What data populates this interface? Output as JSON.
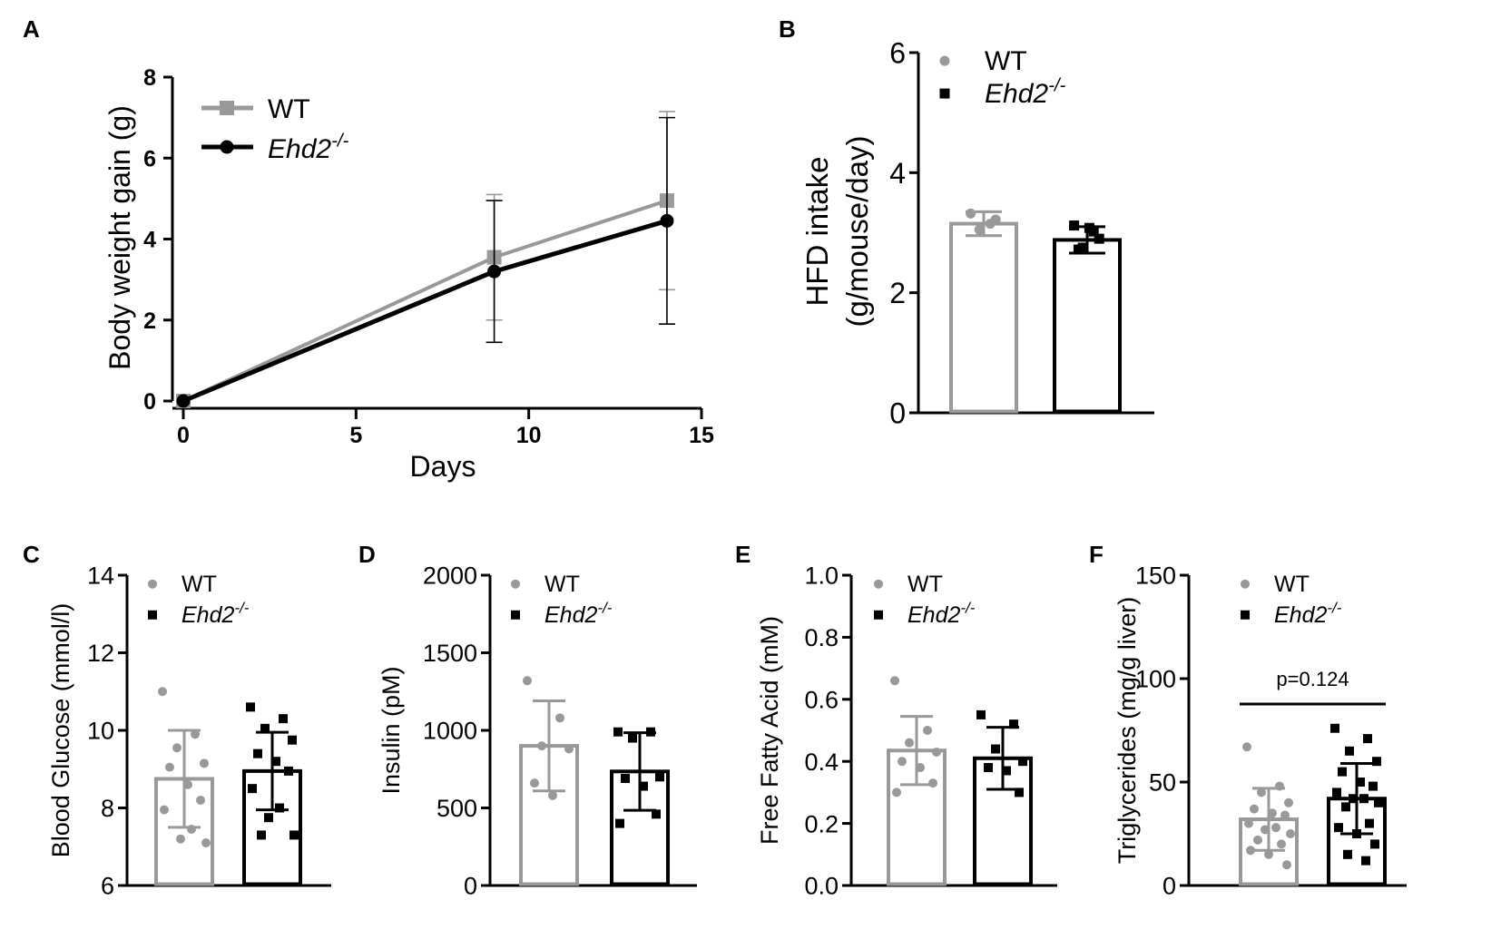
{
  "colors": {
    "wt": "#999999",
    "ko": "#000000"
  },
  "legend": {
    "wt": "WT",
    "ko_base": "Ehd2",
    "ko_sup": "-/-"
  },
  "chart_data": [
    {
      "id": "A",
      "panel_label": "A",
      "type": "line",
      "xlabel": "Days",
      "ylabel": "Body weight gain (g)",
      "xlim": [
        0,
        15
      ],
      "ylim": [
        0,
        8
      ],
      "xticks": [
        "0",
        "5",
        "10",
        "15"
      ],
      "yticks": [
        "0",
        "2",
        "4",
        "6",
        "8"
      ],
      "series": [
        {
          "name": "WT",
          "x": [
            0,
            9,
            14
          ],
          "y": [
            0,
            3.55,
            4.95
          ],
          "err_low": [
            0,
            1.55,
            2.2
          ],
          "err_high": [
            0,
            1.55,
            2.2
          ]
        },
        {
          "name": "Ehd2-/-",
          "x": [
            0,
            9,
            14
          ],
          "y": [
            0,
            3.2,
            4.45
          ],
          "err_low": [
            0,
            1.75,
            2.55
          ],
          "err_high": [
            0,
            1.75,
            2.55
          ]
        }
      ]
    },
    {
      "id": "B",
      "panel_label": "B",
      "type": "bar",
      "ylabel_lines": [
        "HFD intake",
        "(g/mouse/day)"
      ],
      "ylim": [
        0,
        6
      ],
      "yticks": [
        "0",
        "2",
        "4",
        "6"
      ],
      "categories": [
        "WT",
        "Ehd2-/-"
      ],
      "values": [
        3.15,
        2.88
      ],
      "sd": [
        0.2,
        0.22
      ],
      "points": [
        [
          3.32,
          3.15,
          3.05,
          3.22
        ],
        [
          3.12,
          3.02,
          2.75,
          2.9,
          2.72,
          3.08
        ]
      ]
    },
    {
      "id": "C",
      "panel_label": "C",
      "type": "bar",
      "ylabel": "Blood Glucose (mmol/l)",
      "ylim": [
        6,
        14
      ],
      "yticks": [
        "6",
        "8",
        "10",
        "12",
        "14"
      ],
      "categories": [
        "WT",
        "Ehd2-/-"
      ],
      "values": [
        8.75,
        8.95
      ],
      "sd": [
        1.25,
        1.0
      ],
      "points": [
        [
          11.0,
          9.9,
          9.55,
          9.15,
          9.05,
          8.6,
          8.2,
          7.95,
          7.45,
          7.2,
          7.1
        ],
        [
          10.6,
          10.3,
          10.05,
          9.75,
          9.4,
          9.2,
          8.95,
          8.5,
          8.0,
          7.75,
          7.3,
          7.3
        ]
      ]
    },
    {
      "id": "D",
      "panel_label": "D",
      "type": "bar",
      "ylabel": "Insulin (pM)",
      "ylim": [
        0,
        2000
      ],
      "yticks": [
        "0",
        "500",
        "1000",
        "1500",
        "2000"
      ],
      "categories": [
        "WT",
        "Ehd2-/-"
      ],
      "values": [
        900,
        735
      ],
      "sd": [
        290,
        250
      ],
      "points": [
        [
          1320,
          1080,
          900,
          880,
          660,
          580
        ],
        [
          990,
          990,
          950,
          700,
          690,
          640,
          460,
          400
        ]
      ]
    },
    {
      "id": "E",
      "panel_label": "E",
      "type": "bar",
      "ylabel": "Free Fatty Acid (mM)",
      "ylim": [
        0,
        1.0
      ],
      "yticks": [
        "0.0",
        "0.2",
        "0.4",
        "0.6",
        "0.8",
        "1.0"
      ],
      "categories": [
        "WT",
        "Ehd2-/-"
      ],
      "values": [
        0.435,
        0.41
      ],
      "sd": [
        0.11,
        0.1
      ],
      "points": [
        [
          0.66,
          0.5,
          0.46,
          0.43,
          0.4,
          0.38,
          0.33,
          0.3
        ],
        [
          0.55,
          0.52,
          0.44,
          0.4,
          0.38,
          0.37,
          0.3
        ]
      ]
    },
    {
      "id": "F",
      "panel_label": "F",
      "type": "bar",
      "ylabel": "Triglycerides (mg/g liver)",
      "ylim": [
        0,
        150
      ],
      "yticks": [
        "0",
        "50",
        "100",
        "150"
      ],
      "categories": [
        "WT",
        "Ehd2-/-"
      ],
      "values": [
        32,
        42
      ],
      "sd": [
        15,
        17
      ],
      "annotation": "p=0.124",
      "points": [
        [
          67,
          48,
          45,
          40,
          37,
          35,
          34,
          30,
          28,
          27,
          25,
          22,
          20,
          17,
          15,
          10
        ],
        [
          76,
          71,
          65,
          60,
          55,
          50,
          48,
          45,
          42,
          42,
          40,
          38,
          30,
          28,
          25,
          20,
          15,
          12
        ]
      ]
    }
  ]
}
